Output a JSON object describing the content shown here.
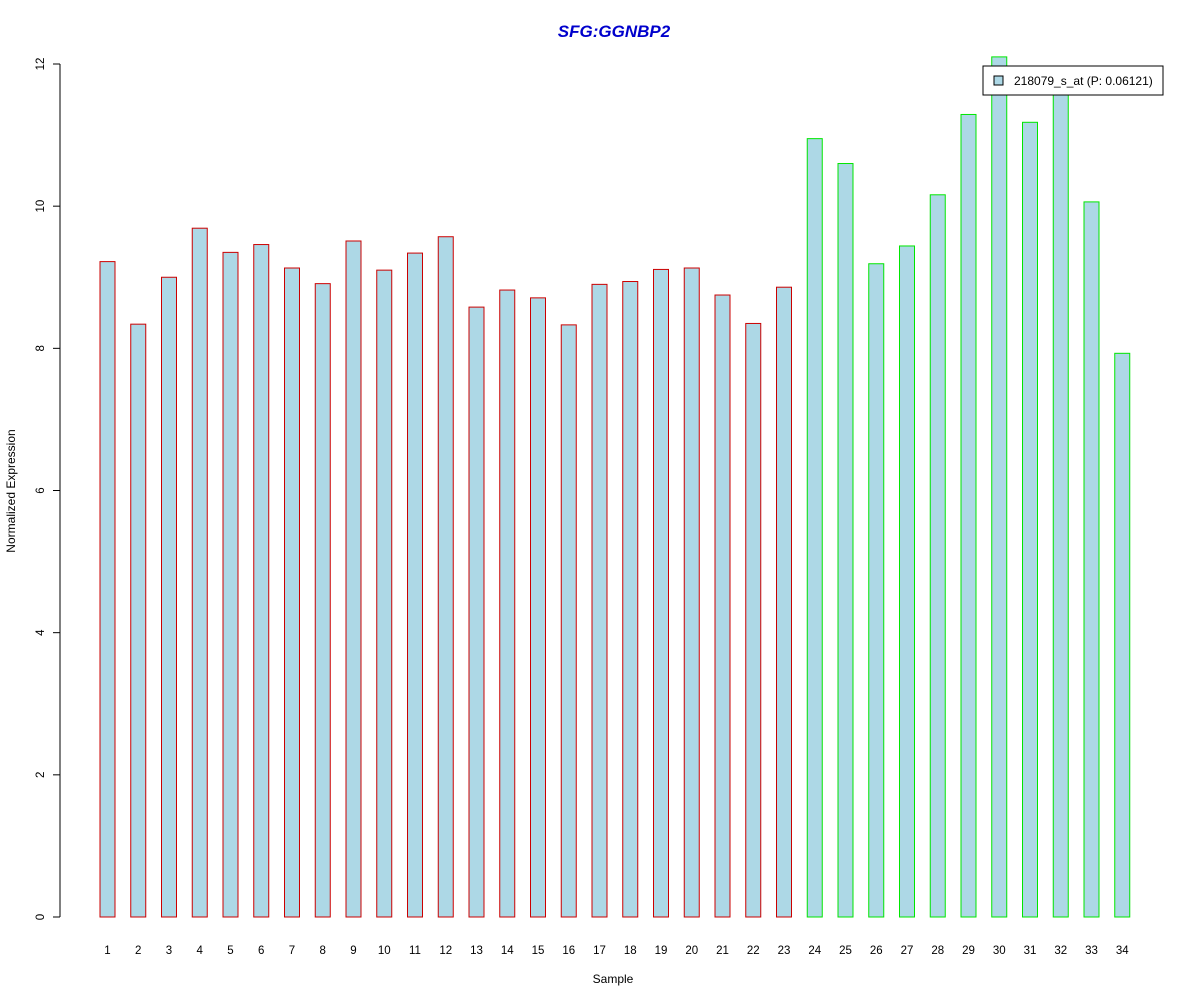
{
  "chart_data": {
    "type": "bar",
    "title": "SFG:GGNBP2",
    "xlabel": "Sample",
    "ylabel": "Normalized Expression",
    "ylim": [
      0,
      12
    ],
    "yticks": [
      "0",
      "2",
      "4",
      "6",
      "8",
      "10",
      "12"
    ],
    "categories": [
      "1",
      "2",
      "3",
      "4",
      "5",
      "6",
      "7",
      "8",
      "9",
      "10",
      "11",
      "12",
      "13",
      "14",
      "15",
      "16",
      "17",
      "18",
      "19",
      "20",
      "21",
      "22",
      "23",
      "24",
      "25",
      "26",
      "27",
      "28",
      "29",
      "30",
      "31",
      "32",
      "33",
      "34"
    ],
    "series": [
      {
        "name": "218079_s_at (P: 0.06121)",
        "values": [
          9.22,
          8.34,
          9.0,
          9.69,
          9.35,
          9.46,
          9.13,
          8.91,
          9.51,
          9.1,
          9.34,
          9.57,
          8.58,
          8.82,
          8.71,
          8.33,
          8.9,
          8.94,
          9.11,
          9.13,
          8.75,
          8.35,
          8.86,
          10.95,
          10.6,
          9.19,
          9.44,
          10.16,
          11.29,
          12.1,
          11.18,
          11.72,
          10.06,
          7.93
        ]
      }
    ],
    "groups": [
      {
        "samples": "1-23",
        "border_color": "#cc0000"
      },
      {
        "samples": "24-34",
        "border_color": "#00e600"
      }
    ],
    "colors": {
      "bar_fill": "#add8e6",
      "title": "#0000cc"
    },
    "legend_position": "top-right",
    "grid": false
  }
}
